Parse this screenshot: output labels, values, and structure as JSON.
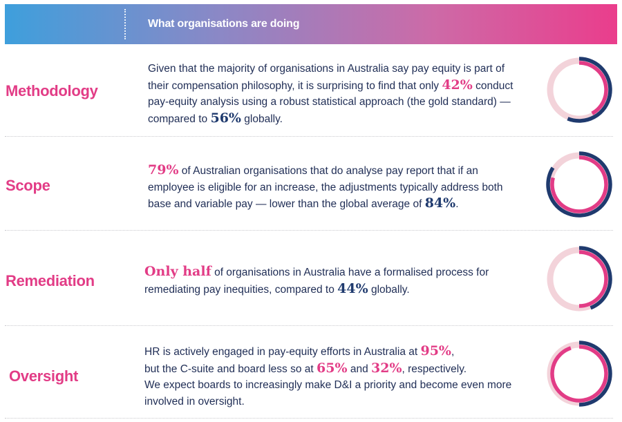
{
  "header": {
    "title": "What organisations are doing"
  },
  "colors": {
    "pink": "#e23c86",
    "navy": "#1f3a6e",
    "light_pink": "#f3d3da"
  },
  "sections": [
    {
      "label": "Methodology",
      "text": {
        "p1": "Given that the majority of organisations in Australia say pay equity is part of their compensation philosophy, it is surprising to find that only ",
        "v1": "42%",
        "p2": " conduct pay-equity analysis using a robust statistical approach (the gold standard) — compared to ",
        "v2": "56%",
        "p3": " globally."
      },
      "donut": {
        "australia_pct": 42,
        "global_pct": 56
      }
    },
    {
      "label": "Scope",
      "text": {
        "v1": "79%",
        "p1": " of Australian organisations that do analyse pay report that if an employee is eligible for an increase, the adjustments typically address both base and variable pay — lower than the global average of ",
        "v2": "84%",
        "p2": "."
      },
      "donut": {
        "australia_pct": 79,
        "global_pct": 84
      }
    },
    {
      "label": "Remediation",
      "text": {
        "v1": "Only half",
        "p1": " of organisations in Australia have a formalised process for remediating pay inequities, compared to ",
        "v2": "44%",
        "p2": " globally."
      },
      "donut": {
        "australia_pct": 50,
        "global_pct": 44
      }
    },
    {
      "label": "Oversight",
      "text": {
        "p1": "HR is actively engaged in pay-equity efforts in Australia at ",
        "v1": "95%",
        "p2": ",",
        "p3": "but the C-suite and board less so at ",
        "v2": "65%",
        "p4": " and ",
        "v3": "32%",
        "p5": ", respectively.",
        "p6": "We expect boards to increasingly make D&I a priority and become even more involved in oversight."
      },
      "donut": {
        "australia_pct": 95,
        "global_pct": 50
      }
    }
  ]
}
